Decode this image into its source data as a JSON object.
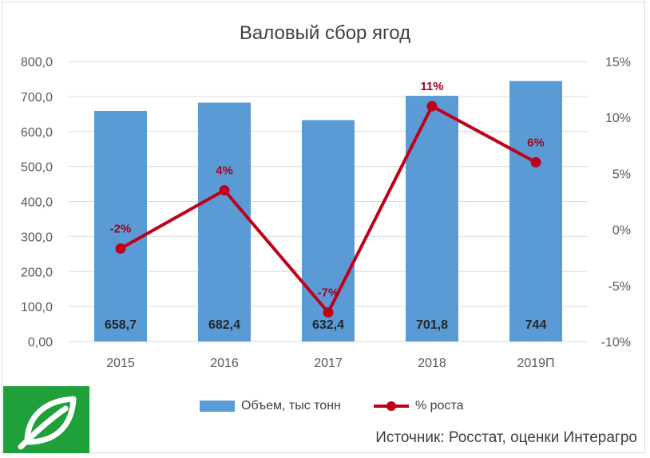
{
  "chart_data": {
    "type": "bar+line",
    "title": "Валовый сбор ягод",
    "categories": [
      "2015",
      "2016",
      "2017",
      "2018",
      "2019П"
    ],
    "series": [
      {
        "name": "Объем, тыс тонн",
        "type": "bar",
        "axis": "left",
        "values": [
          658.7,
          682.4,
          632.4,
          701.8,
          744
        ],
        "labels": [
          "658,7",
          "682,4",
          "632,4",
          "701,8",
          "744"
        ],
        "color": "#5b9bd5"
      },
      {
        "name": "% роста",
        "type": "line",
        "axis": "right",
        "values": [
          -1.7,
          3.5,
          -7.4,
          11.0,
          6.0
        ],
        "labels": [
          "-2%",
          "4%",
          "-7%",
          "11%",
          "6%"
        ],
        "color": "#c0001a"
      }
    ],
    "left_axis": {
      "ylim": [
        0,
        800
      ],
      "ticks": [
        0,
        100,
        200,
        300,
        400,
        500,
        600,
        700,
        800
      ],
      "tick_labels": [
        "0,00",
        "100,0",
        "200,0",
        "300,0",
        "400,0",
        "500,0",
        "600,0",
        "700,0",
        "800,0"
      ]
    },
    "right_axis": {
      "ylim": [
        -10,
        15
      ],
      "ticks": [
        -10,
        -5,
        0,
        5,
        10,
        15
      ],
      "tick_labels": [
        "-10%",
        "-5%",
        "0%",
        "5%",
        "10%",
        "15%"
      ]
    },
    "grid": true,
    "legend": "bottom"
  },
  "legend": {
    "bar_label": "Объем, тыс тонн",
    "line_label": "% роста"
  },
  "source_text": "Источник: Росстат, оценки Интерагро",
  "logo_icon": "leaf-icon"
}
